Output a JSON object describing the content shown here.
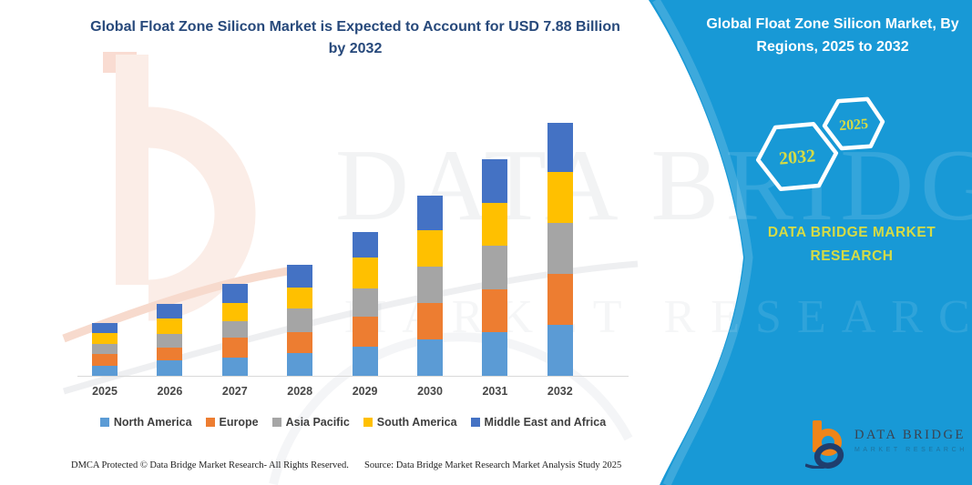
{
  "header": {
    "title_line1": "Global Float Zone Silicon Market is Expected to Account for USD 7.88 Billion",
    "title_line2": "by 2032"
  },
  "side_panel": {
    "title_line1": "Global Float Zone Silicon Market, By",
    "title_line2": "Regions, 2025 to 2032",
    "hexagon_back_label": "2032",
    "hexagon_front_label": "2025",
    "brand_line1": "DATA BRIDGE MARKET",
    "brand_line2": "RESEARCH",
    "panel_color": "#1899D6",
    "accent_text_color": "#D5DB45"
  },
  "watermark": {
    "line1": "DATA BRIDGE",
    "line2": "MARKET RESEARCH"
  },
  "chart_data": {
    "type": "bar",
    "stacked": true,
    "title": "Global Float Zone Silicon Market, By Regions, 2025 to 2032",
    "unit": "USD Billion",
    "categories": [
      "2025",
      "2026",
      "2027",
      "2028",
      "2029",
      "2030",
      "2031",
      "2032"
    ],
    "series": [
      {
        "name": "North America",
        "color": "#5B9BD5",
        "values": [
          0.31,
          0.48,
          0.57,
          0.71,
          0.91,
          1.13,
          1.36,
          1.59
        ]
      },
      {
        "name": "Europe",
        "color": "#ED7D31",
        "values": [
          0.37,
          0.4,
          0.62,
          0.65,
          0.94,
          1.13,
          1.33,
          1.59
        ]
      },
      {
        "name": "Asia Pacific",
        "color": "#A5A5A5",
        "values": [
          0.31,
          0.43,
          0.51,
          0.74,
          0.88,
          1.13,
          1.36,
          1.59
        ]
      },
      {
        "name": "South America",
        "color": "#FFC000",
        "values": [
          0.34,
          0.48,
          0.57,
          0.65,
          0.96,
          1.13,
          1.33,
          1.59
        ]
      },
      {
        "name": "Middle East and Africa",
        "color": "#4472C4",
        "values": [
          0.31,
          0.45,
          0.6,
          0.71,
          0.79,
          1.08,
          1.36,
          1.52
        ]
      }
    ],
    "totals": [
      1.64,
      2.24,
      2.87,
      3.46,
      4.48,
      5.6,
      6.74,
      7.88
    ],
    "ylim": [
      0,
      8
    ],
    "grid": false,
    "axis_labels_shown": false,
    "legend_position": "bottom"
  },
  "footer": {
    "dmca": "DMCA Protected © Data Bridge Market Research-  All Rights Reserved.",
    "source": "Source: Data Bridge Market Research  Market Analysis Study 2025"
  },
  "brand_footer": {
    "wordmark": "DATA BRIDGE",
    "subtext": "MARKET RESEARCH"
  }
}
